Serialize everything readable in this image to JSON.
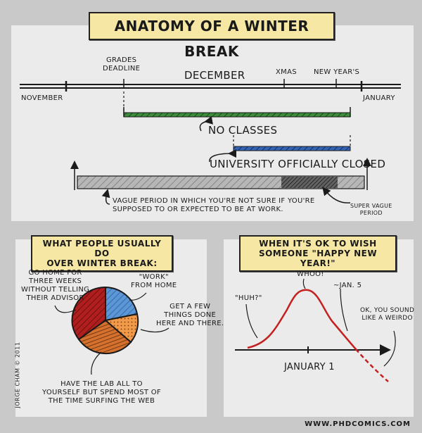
{
  "title": "ANATOMY OF A WINTER BREAK",
  "timeline": {
    "grades_deadline": [
      "GRADES",
      "DEADLINE"
    ],
    "december": "DECEMBER",
    "xmas": "XMAS",
    "new_years": "NEW YEAR'S",
    "november": "NOVEMBER",
    "january": "JANUARY",
    "no_classes": "NO CLASSES",
    "university_closed": "UNIVERSITY OFFICIALLY CLOSED",
    "vague_period": [
      "VAGUE PERIOD IN WHICH YOU'RE NOT SURE IF YOU'RE",
      "SUPPOSED TO OR EXPECTED TO BE AT WORK."
    ],
    "super_vague": [
      "SUPER VAGUE",
      "PERIOD"
    ]
  },
  "pie": {
    "caption": [
      "WHAT PEOPLE USUALLY DO",
      "OVER WINTER BREAK:"
    ],
    "labels": {
      "go_home": [
        "GO HOME FOR",
        "THREE WEEKS",
        "WITHOUT TELLING",
        "THEIR ADVISOR"
      ],
      "work_home": [
        "\"WORK\"",
        "FROM HOME"
      ],
      "get_few": [
        "GET A FEW",
        "THINGS DONE",
        "HERE AND THERE."
      ],
      "lab": [
        "HAVE THE LAB ALL TO",
        "YOURSELF BUT SPEND MOST OF",
        "THE TIME SURFING THE WEB"
      ]
    },
    "colors": {
      "go_home": "#b01e1e",
      "work_home": "#4a86c8",
      "get_few": "#e8883a",
      "lab": "#c05a20"
    }
  },
  "curve": {
    "caption": [
      "WHEN IT'S OK TO WISH",
      "SOMEONE \"HAPPY NEW YEAR!\""
    ],
    "huh": "\"HUH?\"",
    "whoo": "WHOO!",
    "jan5": "~JAN. 5",
    "weirdo": [
      "OK, YOU SOUND",
      "LIKE A WEIRDO"
    ],
    "xlabel": "JANUARY 1",
    "color": "#c42020"
  },
  "credit": "JORGE CHAM © 2011",
  "url": "WWW.PHDCOMICS.COM"
}
